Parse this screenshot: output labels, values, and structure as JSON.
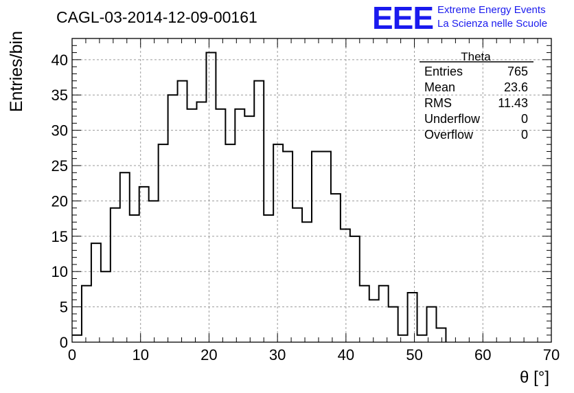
{
  "chart_data": {
    "type": "histogram",
    "title": "CAGL-03-2014-12-09-00161",
    "xlabel": "θ [°]",
    "ylabel": "Entries/bin",
    "xlim": [
      0,
      70
    ],
    "ylim": [
      0,
      43
    ],
    "grid": true,
    "x_ticks": [
      0,
      10,
      20,
      30,
      40,
      50,
      60,
      70
    ],
    "y_ticks": [
      0,
      5,
      10,
      15,
      20,
      25,
      30,
      35,
      40
    ],
    "bin_edges": [
      0,
      1.4,
      2.8,
      4.2,
      5.6,
      7.0,
      8.4,
      9.8,
      11.2,
      12.6,
      14.0,
      15.4,
      16.8,
      18.2,
      19.6,
      21.0,
      22.4,
      23.8,
      25.2,
      26.6,
      28.0,
      29.4,
      30.8,
      32.2,
      33.6,
      35.0,
      36.4,
      37.8,
      39.2,
      40.6,
      42.0,
      43.4,
      44.8,
      46.2,
      47.6,
      49.0,
      50.4,
      51.8,
      53.2,
      54.6
    ],
    "values": [
      1,
      8,
      14,
      10,
      19,
      24,
      18,
      22,
      20,
      28,
      35,
      37,
      33,
      34,
      41,
      33,
      28,
      33,
      32,
      37,
      18,
      28,
      27,
      19,
      17,
      27,
      27,
      21,
      16,
      15,
      8,
      6,
      8,
      5,
      1,
      7,
      1,
      5,
      2
    ],
    "stats_box": {
      "title": "Theta",
      "rows": [
        {
          "label": "Entries",
          "value": "765"
        },
        {
          "label": "Mean",
          "value": "23.6"
        },
        {
          "label": "RMS",
          "value": "11.43"
        },
        {
          "label": "Underflow",
          "value": "0"
        },
        {
          "label": "Overflow",
          "value": "0"
        }
      ]
    }
  },
  "logo": {
    "mark": "EEE",
    "line1": "Extreme Energy Events",
    "line2": "La Scienza nelle Scuole"
  },
  "colors": {
    "logo": "#1a1aee",
    "grid": "#9a9a9a",
    "line": "#000000"
  }
}
